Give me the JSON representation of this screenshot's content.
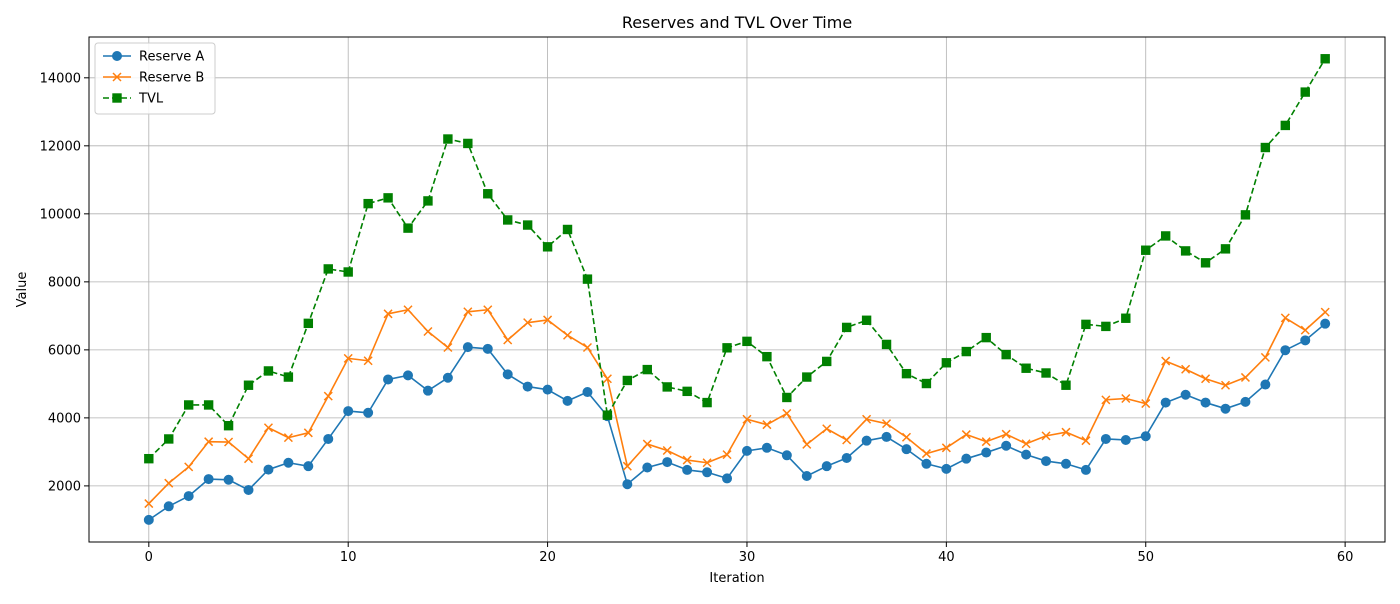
{
  "chart_data": {
    "type": "line",
    "title": "Reserves and TVL Over Time",
    "xlabel": "Iteration",
    "ylabel": "Value",
    "xlim": [
      -3,
      62
    ],
    "ylim": [
      350,
      15200
    ],
    "xticks": [
      0,
      10,
      20,
      30,
      40,
      50,
      60
    ],
    "yticks": [
      2000,
      4000,
      6000,
      8000,
      10000,
      12000,
      14000
    ],
    "grid": true,
    "legend_position": "upper-left",
    "x": [
      0,
      1,
      2,
      3,
      4,
      5,
      6,
      7,
      8,
      9,
      10,
      11,
      12,
      13,
      14,
      15,
      16,
      17,
      18,
      19,
      20,
      21,
      22,
      23,
      24,
      25,
      26,
      27,
      28,
      29,
      30,
      31,
      32,
      33,
      34,
      35,
      36,
      37,
      38,
      39,
      40,
      41,
      42,
      43,
      44,
      45,
      46,
      47,
      48,
      49,
      50,
      51,
      52,
      53,
      54,
      55,
      56,
      57,
      58,
      59
    ],
    "series": [
      {
        "name": "Reserve A",
        "color": "#1f77b4",
        "marker": "circle",
        "line_style": "solid",
        "values": [
          1000,
          1400,
          1700,
          2200,
          2180,
          1880,
          2480,
          2680,
          2580,
          3380,
          4200,
          4150,
          5130,
          5250,
          4800,
          5180,
          6080,
          6030,
          5280,
          4920,
          4830,
          4500,
          4760,
          4050,
          2050,
          2540,
          2700,
          2470,
          2400,
          2220,
          3030,
          3120,
          2900,
          2290,
          2580,
          2820,
          3330,
          3440,
          3080,
          2650,
          2500,
          2800,
          2980,
          3180,
          2920,
          2730,
          2650,
          2470,
          3380,
          3350,
          3460,
          4450,
          4680,
          4450,
          4270,
          4470,
          4980,
          5990,
          6280,
          6770
        ]
      },
      {
        "name": "Reserve B",
        "color": "#ff7f0e",
        "marker": "x",
        "line_style": "solid",
        "values": [
          1480,
          2080,
          2560,
          3300,
          3290,
          2800,
          3710,
          3420,
          3560,
          4640,
          5750,
          5680,
          7060,
          7180,
          6540,
          6070,
          7120,
          7180,
          6290,
          6800,
          6880,
          6430,
          6070,
          5150,
          2580,
          3230,
          3040,
          2760,
          2680,
          2920,
          3960,
          3800,
          4130,
          3220,
          3680,
          3350,
          3960,
          3830,
          3430,
          2950,
          3120,
          3510,
          3300,
          3520,
          3240,
          3470,
          3580,
          3330,
          4530,
          4570,
          4420,
          5670,
          5430,
          5150,
          4960,
          5190,
          5780,
          6940,
          6580,
          7110
        ]
      },
      {
        "name": "TVL",
        "color": "#008000",
        "marker": "square",
        "line_style": "dashed",
        "values": [
          2800,
          3380,
          4380,
          4380,
          3770,
          4960,
          5380,
          5200,
          6780,
          8380,
          8290,
          10300,
          10470,
          9580,
          10380,
          12200,
          12070,
          10590,
          9820,
          9670,
          9030,
          9540,
          8080,
          4080,
          5100,
          5420,
          4910,
          4780,
          4450,
          6060,
          6250,
          5800,
          4600,
          5200,
          5660,
          6660,
          6870,
          6160,
          5300,
          5010,
          5620,
          5950,
          6360,
          5860,
          5460,
          5320,
          4960,
          6750,
          6690,
          6930,
          8930,
          9350,
          8910,
          8560,
          8970,
          9970,
          11950,
          12600,
          13580,
          14560
        ]
      }
    ]
  }
}
